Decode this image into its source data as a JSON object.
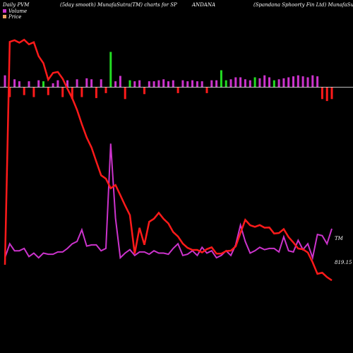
{
  "header": {
    "left": "Daily PVM",
    "center_left": "(5day smooth) MunafaSutra(TM) charts for SP",
    "center": "ANDANA",
    "right": "(Spandana Sphoorty Fin Ltd) MunafaSutra.com"
  },
  "legend": [
    {
      "label": "Volume",
      "color": "#cc33cc"
    },
    {
      "label": "Price",
      "color": "#e8a060"
    }
  ],
  "colors": {
    "background": "#000000",
    "price_line": "#ff1a1a",
    "pvm_line": "#cc33cc",
    "bar_up": "#cc33cc",
    "bar_down": "#ff1a1a",
    "bar_neutral": "#22dd22",
    "zero_line": "#ffffff"
  },
  "chart_data": {
    "type": "line",
    "series": [
      {
        "name": "Price",
        "values": [
          0.65,
          14.35,
          14.45,
          14.3,
          14.48,
          14.2,
          14.33,
          13.47,
          13.04,
          12.03,
          12.44,
          12.5,
          12.09,
          11.47,
          10.89,
          10.17,
          9.29,
          8.47,
          7.86,
          6.99,
          6.15,
          5.94,
          5.35,
          5.55,
          4.93,
          4.29,
          3.7,
          1.33,
          2.92,
          1.88,
          3.29,
          3.48,
          3.84,
          3.47,
          3.19,
          2.66,
          2.39,
          1.95,
          1.69,
          1.56,
          1.56,
          1.41,
          1.61,
          1.72,
          1.33,
          1.33,
          1.49,
          1.52,
          1.78,
          2.6,
          3.41,
          3.08,
          2.98,
          3.09,
          2.93,
          2.94,
          2.57,
          2.6,
          2.84,
          2.35,
          2.02,
          1.65,
          1.6,
          1.4,
          0.8,
          0.09,
          0.16,
          -0.11,
          -0.31
        ]
      },
      {
        "name": "Volume",
        "values": [
          0.3,
          0.9,
          0.6,
          0.6,
          0.7,
          0.35,
          0.5,
          0.3,
          0.5,
          0.45,
          0.45,
          0.55,
          0.55,
          0.7,
          0.9,
          1.0,
          1.5,
          0.8,
          0.85,
          0.85,
          0.6,
          0.7,
          5.2,
          2.0,
          0.3,
          0.5,
          0.65,
          0.4,
          0.55,
          0.55,
          0.45,
          0.6,
          0.5,
          0.5,
          0.45,
          0.7,
          0.9,
          0.4,
          0.45,
          0.6,
          0.4,
          0.75,
          0.5,
          0.6,
          0.3,
          0.4,
          0.6,
          0.4,
          0.85,
          1.7,
          1.0,
          0.5,
          0.6,
          0.75,
          0.65,
          0.7,
          0.7,
          0.55,
          1.2,
          0.6,
          0.55,
          1.05,
          0.65,
          0.9,
          0.3,
          1.3,
          1.25,
          0.9,
          1.55
        ]
      },
      {
        "name": "PVM bars",
        "values": [
          0.6,
          -0.5,
          0.4,
          0.3,
          -0.4,
          0.3,
          -0.5,
          0.35,
          0.3,
          -0.4,
          0.2,
          0.35,
          -0.5,
          0.35,
          -0.6,
          0.4,
          -0.5,
          0.45,
          0.4,
          -0.55,
          0.4,
          -0.3,
          0.6,
          0.3,
          0.5,
          -0.6,
          0.35,
          0.3,
          0.35,
          -0.35,
          0.3,
          0.3,
          0.35,
          0.4,
          0.3,
          0.35,
          -0.3,
          0.35,
          0.3,
          0.35,
          0.3,
          0.3,
          -0.3,
          0.35,
          0.35,
          0.3,
          0.35,
          0.4,
          0.5,
          0.5,
          0.4,
          0.35,
          0.5,
          0.45,
          0.6,
          0.5,
          0.35,
          0.4,
          0.45,
          0.5,
          0.55,
          0.6,
          0.55,
          0.5,
          0.6,
          0.55,
          -0.6,
          -0.7,
          -0.6
        ]
      }
    ],
    "annotations": {
      "pvm_end_label": "TM",
      "price_end_label": "819.15"
    }
  }
}
